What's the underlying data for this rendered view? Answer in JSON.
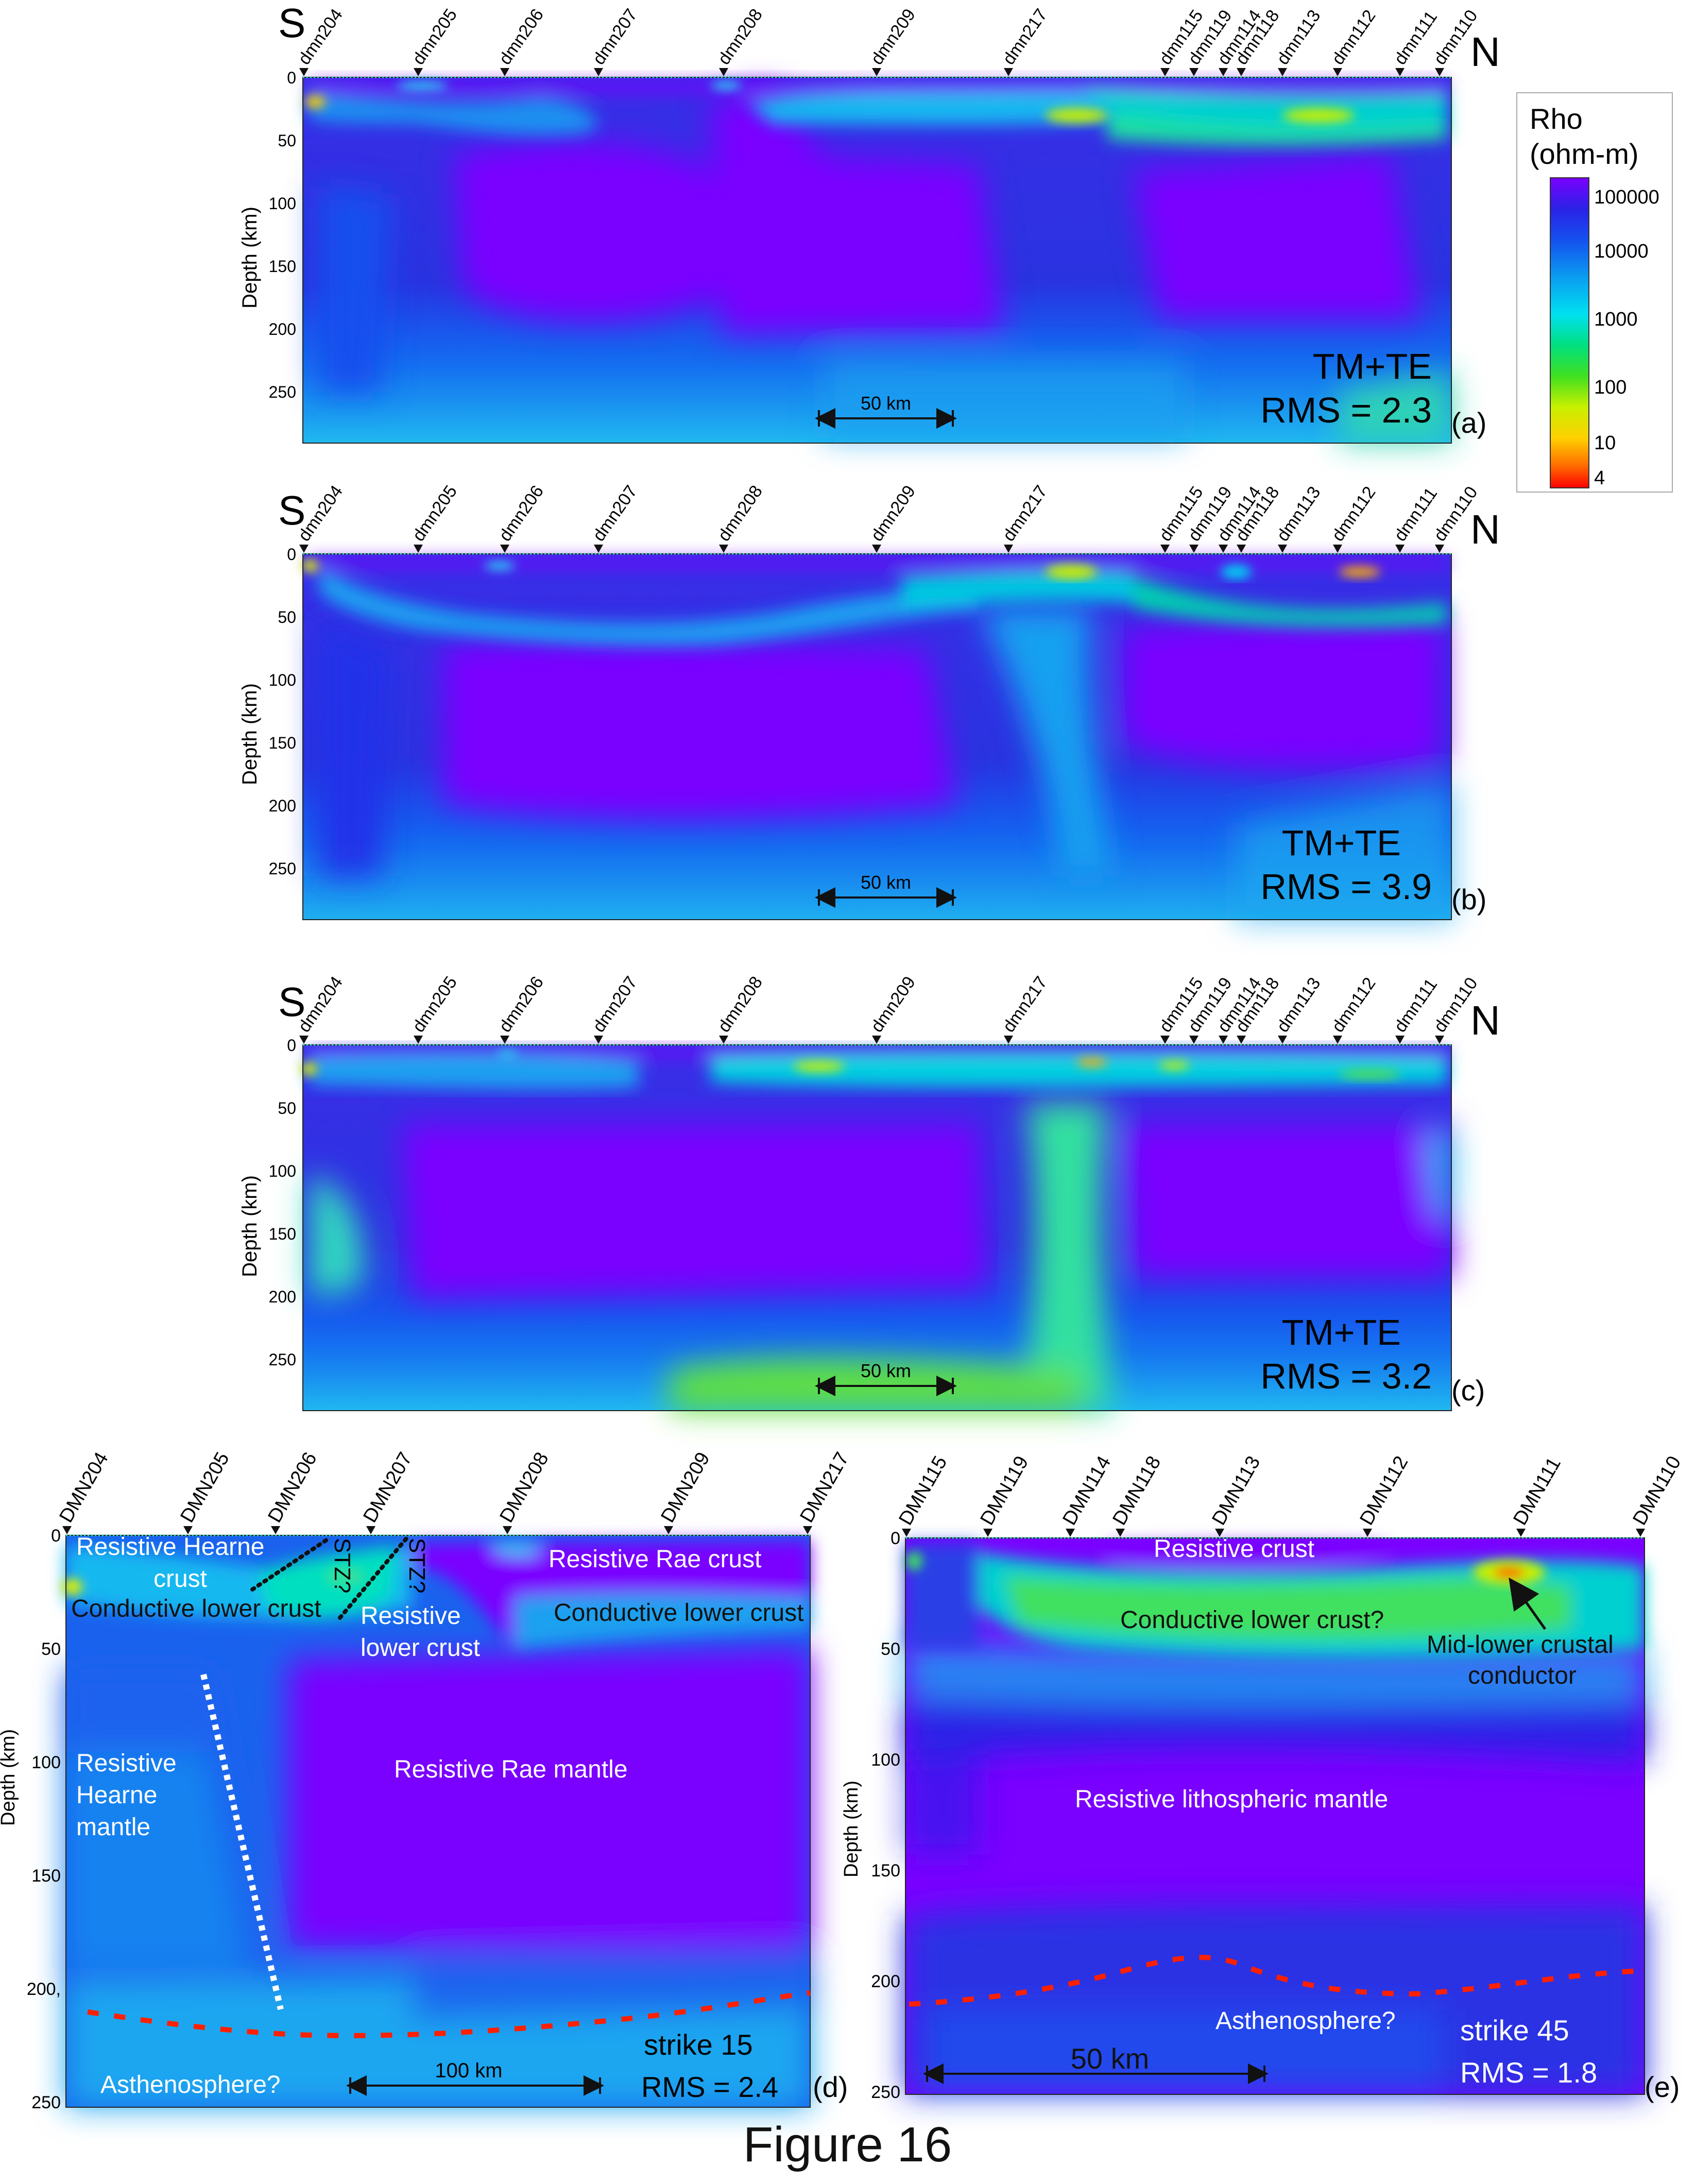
{
  "caption": "Figure 16",
  "compass": {
    "south": "S",
    "north": "N"
  },
  "colorbar": {
    "title_line1": "Rho",
    "title_line2": "(ohm-m)",
    "ticks": [
      "100000",
      "10000",
      "1000",
      "100",
      "10",
      "4"
    ],
    "colors": [
      "#7a00ff",
      "#2a22e6",
      "#0a66f0",
      "#00e0f0",
      "#00e080",
      "#40e020",
      "#e0e000",
      "#ff8000",
      "#ff0000"
    ]
  },
  "stations_top": [
    "dmn204",
    "dmn205",
    "dmn206",
    "dmn207",
    "dmn208",
    "dmn209",
    "dmn217",
    "dmn115",
    "dmn119",
    "dmn114",
    "dmn118",
    "dmn113",
    "dmn112",
    "dmn111",
    "dmn110"
  ],
  "stations_d": [
    "DMN204",
    "DMN205",
    "DMN206",
    "DMN207",
    "DMN208",
    "DMN209",
    "DMN217"
  ],
  "stations_e": [
    "DMN115",
    "DMN119",
    "DMN114",
    "DMN118",
    "DMN113",
    "DMN112",
    "DMN111",
    "DMN110"
  ],
  "panels": [
    {
      "id": "a",
      "label": "(a)",
      "ylabel": "Depth (km)",
      "yticks": [
        "0",
        "50",
        "100",
        "150",
        "200",
        "250"
      ],
      "mode_text": "TM+TE",
      "rms_text": "RMS = 2.3",
      "scale_text": "50 km"
    },
    {
      "id": "b",
      "label": "(b)",
      "ylabel": "Depth (km)",
      "yticks": [
        "0",
        "50",
        "100",
        "150",
        "200",
        "250"
      ],
      "mode_text": "TM+TE",
      "rms_text": "RMS = 3.9",
      "scale_text": "50 km"
    },
    {
      "id": "c",
      "label": "(c)",
      "ylabel": "Depth (km)",
      "yticks": [
        "0",
        "50",
        "100",
        "150",
        "200",
        "250"
      ],
      "mode_text": "TM+TE",
      "rms_text": "RMS = 3.2",
      "scale_text": "50 km"
    }
  ],
  "panel_d": {
    "label": "(d)",
    "ylabel": "Depth (km)",
    "yticks": [
      "0",
      "50",
      "100",
      "150",
      "200,",
      "250"
    ],
    "strike_text": "strike 15",
    "rms_text": "RMS = 2.4",
    "scale_text": "100 km",
    "stz_label": "STZ?",
    "annotations": {
      "resistive_hearne_crust_1": "Resistive Hearne",
      "resistive_hearne_crust_2": "crust",
      "conductive_lower_crust_left": "Conductive lower crust",
      "resistive_lower_crust_1": "Resistive",
      "resistive_lower_crust_2": "lower crust",
      "resistive_rae_crust": "Resistive Rae crust",
      "conductive_lower_crust_right": "Conductive lower crust",
      "resistive_hearne_mantle_1": "Resistive",
      "resistive_hearne_mantle_2": "Hearne",
      "resistive_hearne_mantle_3": "mantle",
      "resistive_rae_mantle": "Resistive Rae mantle",
      "asthenosphere": "Asthenosphere?"
    }
  },
  "panel_e": {
    "label": "(e)",
    "ylabel": "Depth (km)",
    "yticks": [
      "0",
      "50",
      "100",
      "150",
      "200",
      "250"
    ],
    "strike_text": "strike 45",
    "rms_text": "RMS = 1.8",
    "scale_text": "50 km",
    "annotations": {
      "resistive_crust": "Resistive crust",
      "conductive_lower_crust": "Conductive lower crust?",
      "mid_lower_1": "Mid-lower crustal",
      "mid_lower_2": "conductor",
      "resistive_lithospheric_mantle": "Resistive lithospheric mantle",
      "asthenosphere": "Asthenosphere?"
    }
  }
}
